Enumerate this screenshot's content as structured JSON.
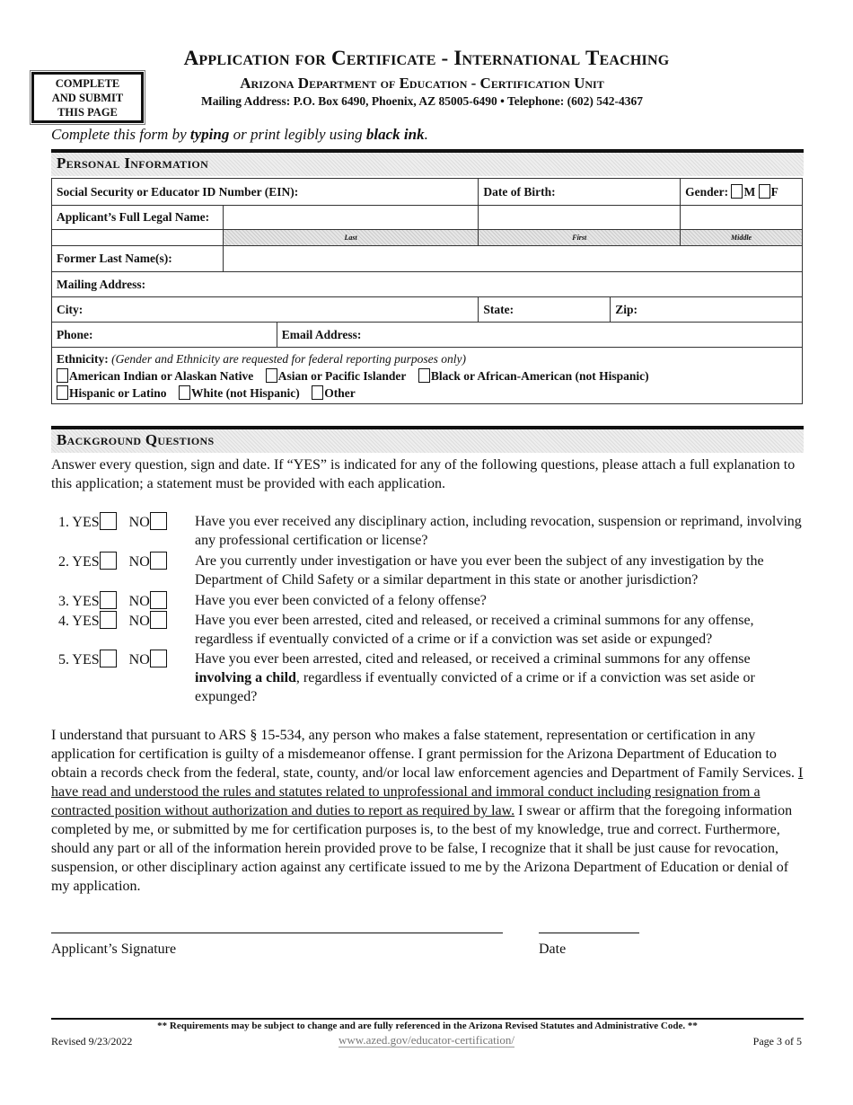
{
  "header": {
    "title": "Application for Certificate - International Teaching",
    "subtitle": "Arizona Department of Education - Certification Unit",
    "address": "Mailing Address: P.O. Box 6490, Phoenix, AZ 85005-6490 • Telephone: (602) 542-4367",
    "submit_box": [
      "COMPLETE",
      "AND SUBMIT",
      "THIS PAGE"
    ]
  },
  "instructions": {
    "a": "Complete this form by ",
    "b": "typing",
    "c": " or print legibly using ",
    "d": "black ink",
    "e": "."
  },
  "personal": {
    "heading": "Personal Information",
    "ssn": "Social Security or Educator ID Number (EIN):",
    "dob": "Date of Birth:",
    "gender": "Gender:",
    "m": "M",
    "f": "F",
    "name": "Applicant’s Full Legal Name:",
    "last": "Last",
    "first": "First",
    "middle": "Middle",
    "former": "Former Last Name(s):",
    "mailing": "Mailing Address:",
    "city": "City:",
    "state": "State:",
    "zip": "Zip:",
    "phone": "Phone:",
    "email": "Email Address:",
    "ethnicity": "Ethnicity:",
    "ethnicity_note": "(Gender and Ethnicity are requested for federal reporting purposes only)",
    "options": [
      "American Indian or Alaskan Native",
      "Asian or Pacific Islander",
      "Black or African-American (not Hispanic)",
      "Hispanic or Latino",
      "White (not Hispanic)",
      "Other"
    ]
  },
  "background": {
    "heading": "Background Questions",
    "intro": "Answer every question, sign and date.  If “YES” is indicated for any of the following questions, please attach a full explanation to this application; a statement must be provided with each application.",
    "yes": "YES",
    "no": "NO",
    "questions": [
      {
        "num": "1.",
        "text": "Have you ever received any disciplinary action, including revocation, suspension or reprimand, involving any professional certification or license?"
      },
      {
        "num": "2.",
        "text": "Are you currently under investigation or have you ever been the subject of any investigation by the Department of Child Safety or a similar department in this state or another jurisdiction?"
      },
      {
        "num": "3.",
        "text": "Have you ever been convicted of a felony offense?"
      },
      {
        "num": "4.",
        "text": "Have you ever been arrested, cited and released, or received a criminal summons for any offense, regardless if eventually convicted of a crime or if a conviction was set aside or expunged?"
      },
      {
        "num": "5.",
        "text": "Have you ever been arrested, cited and released, or received a criminal summons for any offense ",
        "bold": "involving a child",
        "text2": ", regardless if eventually convicted of a crime or if a conviction was set aside or expunged?"
      }
    ]
  },
  "statement": {
    "a": "I understand that pursuant to ARS § 15-534, any person who makes a false statement, representation or certification in any application for certification is guilty of a misdemeanor offense. I grant permission for the Arizona Department of Education to obtain a records check from the federal, state, county, and/or local law enforcement agencies and Department of Family Services. ",
    "underlined": "I have read and understood the rules and statutes related to unprofessional and immoral conduct including resignation from a contracted position without authorization and duties to report as required by law.",
    "b": "  I swear or affirm that the foregoing information completed by me, or submitted by me for certification purposes is, to the best of my knowledge, true and correct. Furthermore, should any part or all of the information herein provided prove to be false, I recognize that it shall be just cause for revocation, suspension, or other disciplinary action against any certificate issued to me by the Arizona Department of Education or denial of my application."
  },
  "signature": {
    "label": "Applicant’s Signature",
    "date": "Date"
  },
  "footer": {
    "note": "** Requirements may be subject to change and are fully referenced in the Arizona Revised Statutes and Administrative Code. **",
    "revised": "Revised 9/23/2022",
    "url": "www.azed.gov/educator-certification/",
    "page": "Page 3 of 5"
  }
}
